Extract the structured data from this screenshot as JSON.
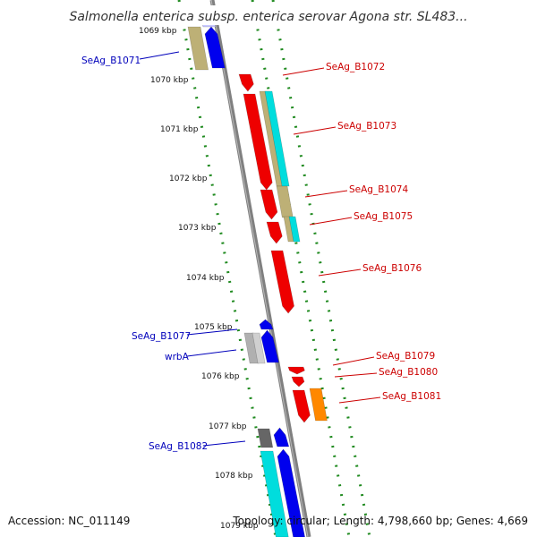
{
  "title": "Salmonella enterica subsp. enterica serovar Agona str. SL483...",
  "footer": {
    "accession": "Accession: NC_011149",
    "topology": "Topology: circular; Length: 4,798,660 bp; Genes: 4,669"
  },
  "colors": {
    "forward_label": "#cc0000",
    "reverse_label": "#0000bb",
    "backbone": "#808080",
    "dots": "#1f8a1f"
  },
  "ticks": [
    "1069 kbp",
    "1070 kbp",
    "1071 kbp",
    "1072 kbp",
    "1073 kbp",
    "1074 kbp",
    "1075 kbp",
    "1076 kbp",
    "1077 kbp",
    "1078 kbp",
    "1079 kbp"
  ],
  "labels": [
    {
      "text": "SeAg_B1071",
      "side": "left"
    },
    {
      "text": "SeAg_B1072",
      "side": "right"
    },
    {
      "text": "SeAg_B1073",
      "side": "right"
    },
    {
      "text": "SeAg_B1074",
      "side": "right"
    },
    {
      "text": "SeAg_B1075",
      "side": "right"
    },
    {
      "text": "SeAg_B1076",
      "side": "right"
    },
    {
      "text": "SeAg_B1077",
      "side": "left"
    },
    {
      "text": "wrbA",
      "side": "left"
    },
    {
      "text": "SeAg_B1079",
      "side": "right"
    },
    {
      "text": "SeAg_B1080",
      "side": "right"
    },
    {
      "text": "SeAg_B1081",
      "side": "right"
    },
    {
      "text": "SeAg_B1082",
      "side": "left"
    }
  ]
}
